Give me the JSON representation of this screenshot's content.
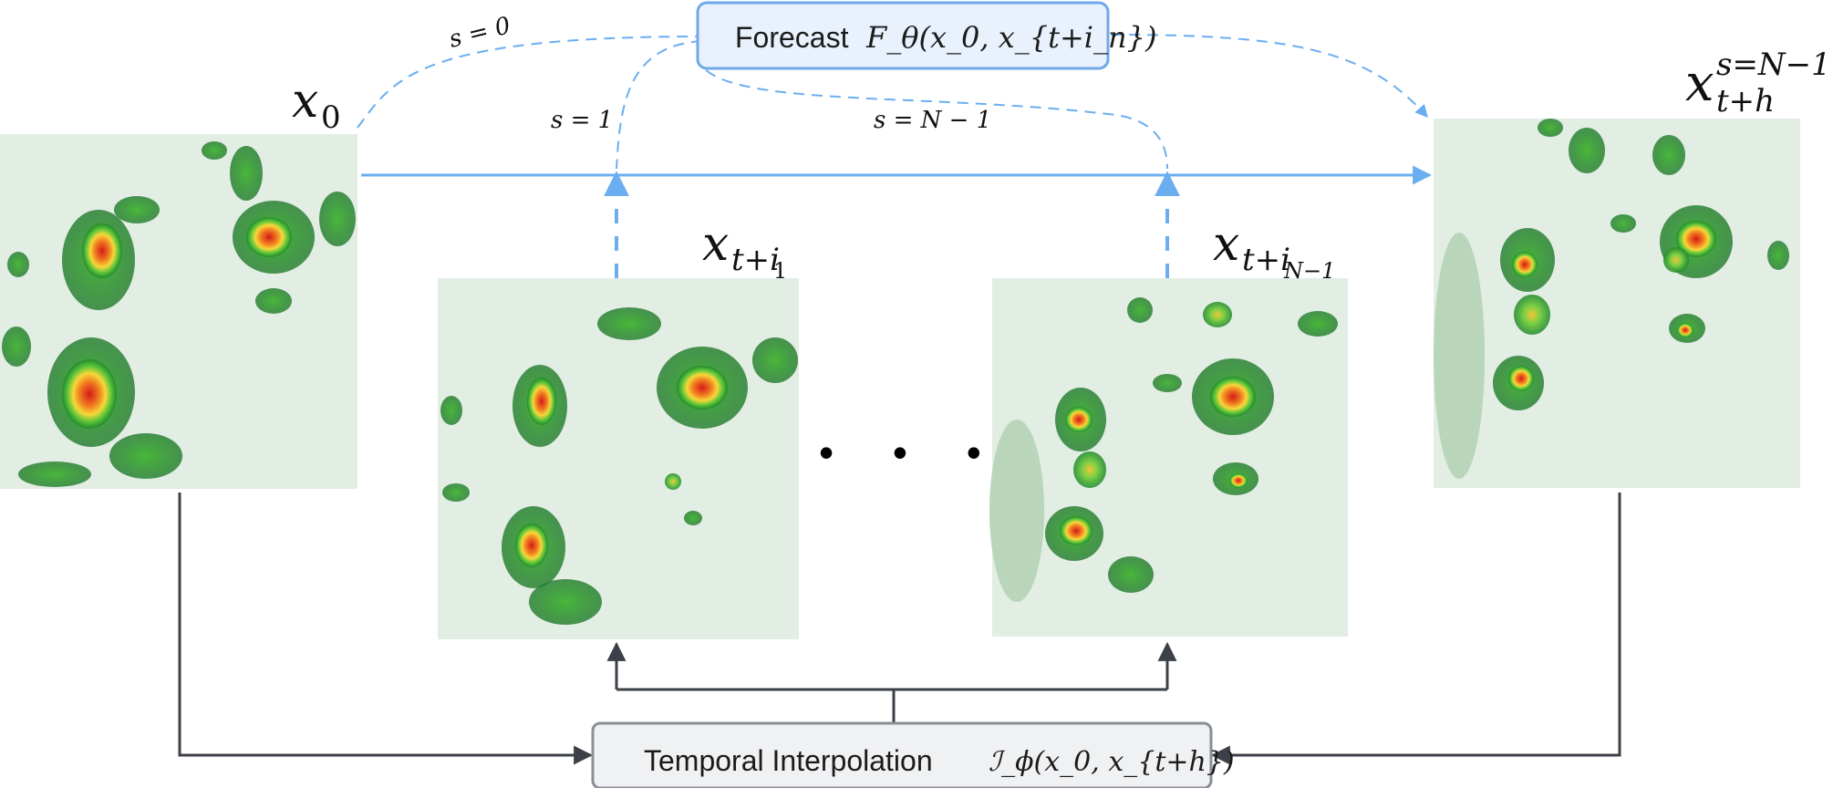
{
  "forecast_box": {
    "label": "Forecast",
    "math": "F_θ(x_0, x_{t+i_n})"
  },
  "interp_box": {
    "label": "Temporal Interpolation",
    "math": "ℐ_ϕ(x_0, x_{t+h})"
  },
  "frames": [
    {
      "id": "x0",
      "base": "x",
      "sub": "0",
      "sup": ""
    },
    {
      "id": "xti1",
      "base": "x",
      "sub": "t+i",
      "subsub": "1",
      "sup": ""
    },
    {
      "id": "xtiN1",
      "base": "x",
      "sub": "t+i",
      "subsub": "N−1",
      "sup": ""
    },
    {
      "id": "xth",
      "base": "x",
      "sub": "t+h",
      "sup": "s=N−1"
    }
  ],
  "step_labels": {
    "s0": "s = 0",
    "s1": "s = 1",
    "sN1": "s = N − 1"
  },
  "ellipsis": "• • •",
  "colors": {
    "forecast_border": "#6fa8e8",
    "forecast_fill": "#e8f1fc",
    "arrow_blue": "#6aaef0",
    "arrow_dark": "#3c4048",
    "interp_border": "#8a8e96",
    "interp_fill": "#f0f1f3",
    "radar_bg": "#e2ede3"
  }
}
